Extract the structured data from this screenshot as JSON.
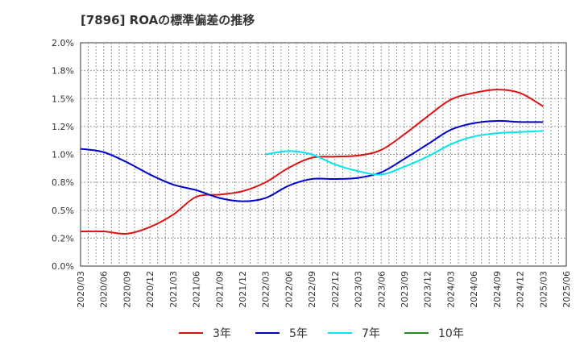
{
  "chart_data": {
    "type": "line",
    "title": "[7896]  ROAの標準偏差の推移",
    "xlabel": "",
    "ylabel": "",
    "ylim": [
      0,
      2.0
    ],
    "y_ticks": [
      "0.0%",
      "0.2%",
      "0.5%",
      "0.8%",
      "1.0%",
      "1.2%",
      "1.5%",
      "1.8%",
      "2.0%"
    ],
    "x": [
      "2020/03",
      "2020/06",
      "2020/09",
      "2020/12",
      "2021/03",
      "2021/06",
      "2021/09",
      "2021/12",
      "2022/03",
      "2022/06",
      "2022/09",
      "2022/12",
      "2023/03",
      "2023/06",
      "2023/09",
      "2023/12",
      "2024/03",
      "2024/06",
      "2024/09",
      "2024/12",
      "2025/03",
      "2025/06"
    ],
    "grid": true,
    "legend_position": "bottom",
    "series": [
      {
        "name": "3年",
        "color": "#dd1111",
        "values": [
          0.31,
          0.31,
          0.29,
          0.35,
          0.46,
          0.62,
          0.64,
          0.67,
          0.75,
          0.88,
          0.97,
          0.98,
          0.99,
          1.04,
          1.18,
          1.34,
          1.49,
          1.55,
          1.58,
          1.55,
          1.43,
          null
        ]
      },
      {
        "name": "5年",
        "color": "#0000cc",
        "values": [
          1.05,
          1.02,
          0.93,
          0.82,
          0.73,
          0.68,
          0.61,
          0.58,
          0.61,
          0.72,
          0.78,
          0.78,
          0.79,
          0.84,
          0.96,
          1.09,
          1.22,
          1.28,
          1.3,
          1.29,
          1.29,
          null
        ]
      },
      {
        "name": "7年",
        "color": "#00e5ee",
        "values": [
          null,
          null,
          null,
          null,
          null,
          null,
          null,
          null,
          1.0,
          1.03,
          1.0,
          0.91,
          0.85,
          0.82,
          0.89,
          0.98,
          1.09,
          1.16,
          1.19,
          1.2,
          1.21,
          null
        ]
      },
      {
        "name": "10年",
        "color": "#228b22",
        "values": [
          null,
          null,
          null,
          null,
          null,
          null,
          null,
          null,
          null,
          null,
          null,
          null,
          null,
          null,
          null,
          null,
          null,
          null,
          null,
          null,
          null,
          null
        ]
      }
    ]
  }
}
